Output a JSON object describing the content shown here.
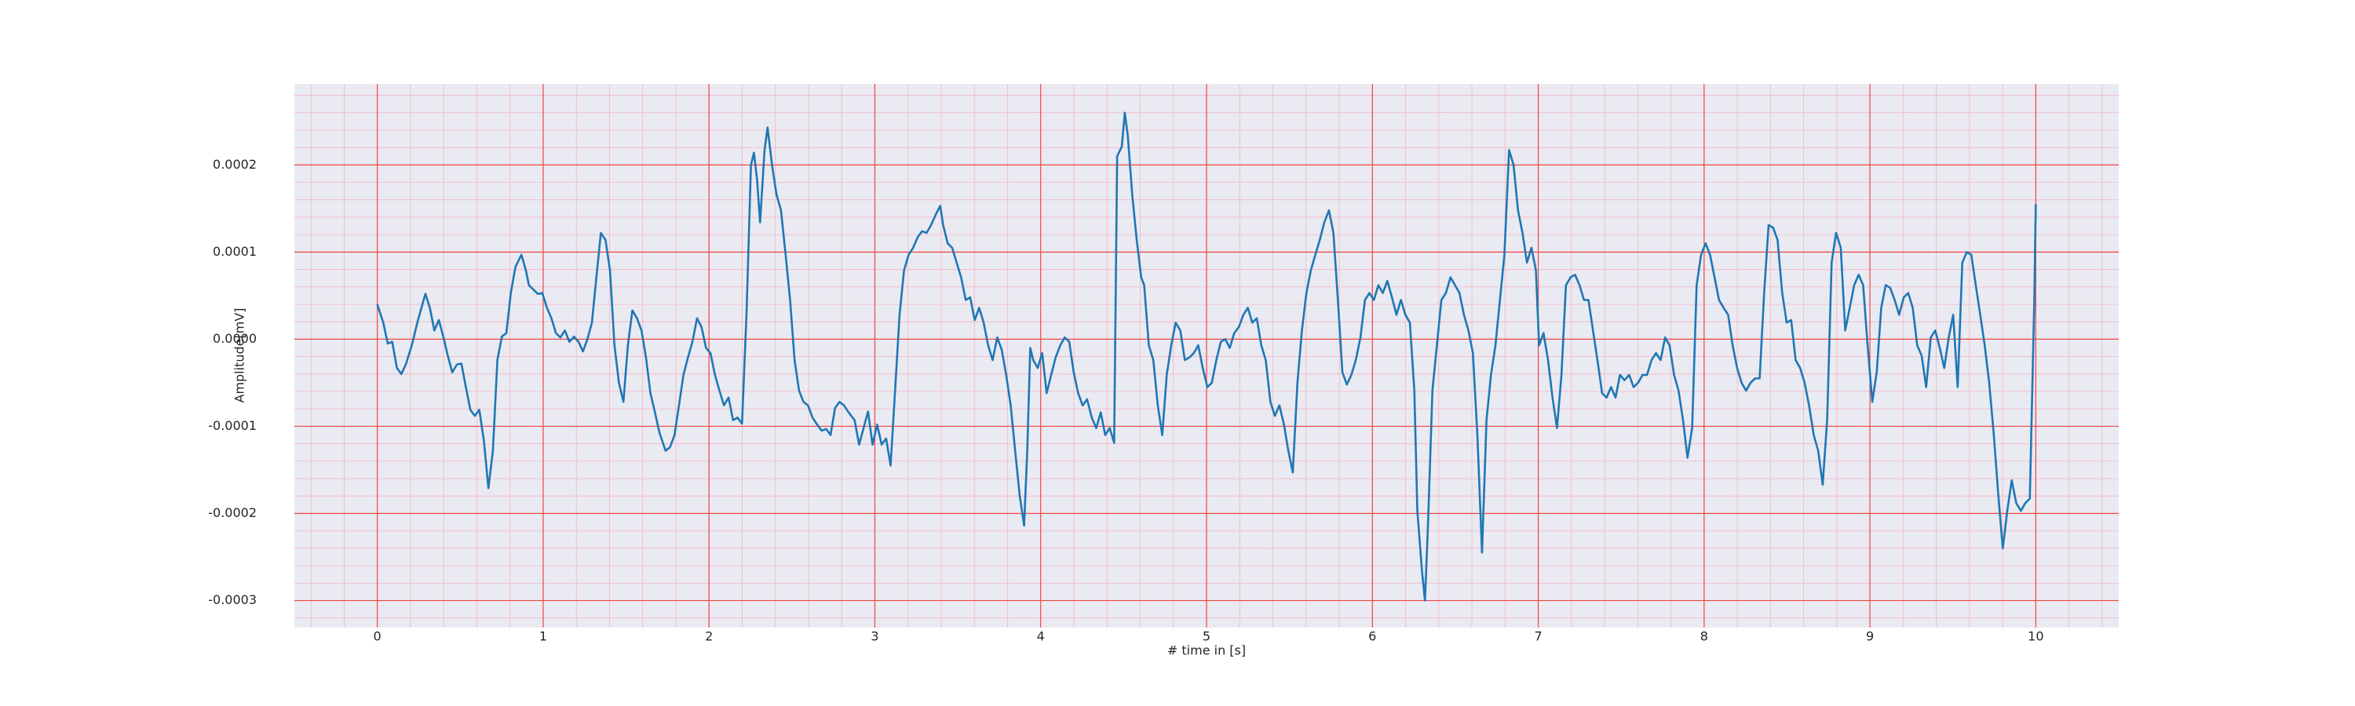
{
  "chart_data": {
    "type": "line",
    "xlabel": "# time in [s]",
    "ylabel": "Amplitude[mV]",
    "color": "#1f77b4",
    "grid": true,
    "minor_grid": true,
    "xlim": [
      -0.5,
      10.5
    ],
    "ylim": [
      -0.000331,
      0.000293
    ],
    "xticks": [
      0,
      1,
      2,
      3,
      4,
      5,
      6,
      7,
      8,
      9,
      10
    ],
    "yticks": [
      -0.0003,
      -0.0002,
      -0.0001,
      {
        "value": 0,
        "label": "0.0000"
      },
      0.0001,
      0.0002
    ],
    "x": [
      0.0,
      0.036,
      0.063,
      0.09,
      0.118,
      0.145,
      0.172,
      0.208,
      0.244,
      0.29,
      0.317,
      0.344,
      0.371,
      0.398,
      0.425,
      0.452,
      0.48,
      0.507,
      0.534,
      0.561,
      0.588,
      0.615,
      0.643,
      0.67,
      0.697,
      0.724,
      0.751,
      0.778,
      0.805,
      0.833,
      0.869,
      0.896,
      0.914,
      0.941,
      0.968,
      0.995,
      1.023,
      1.05,
      1.077,
      1.104,
      1.131,
      1.158,
      1.186,
      1.213,
      1.24,
      1.267,
      1.294,
      1.321,
      1.348,
      1.376,
      1.403,
      1.43,
      1.457,
      1.484,
      1.511,
      1.538,
      1.566,
      1.593,
      1.62,
      1.647,
      1.674,
      1.701,
      1.738,
      1.765,
      1.792,
      1.819,
      1.846,
      1.873,
      1.9,
      1.928,
      1.955,
      1.982,
      2.009,
      2.036,
      2.063,
      2.09,
      2.118,
      2.145,
      2.172,
      2.199,
      2.226,
      2.253,
      2.271,
      2.29,
      2.308,
      2.335,
      2.353,
      2.38,
      2.407,
      2.434,
      2.462,
      2.489,
      2.516,
      2.543,
      2.57,
      2.597,
      2.624,
      2.652,
      2.679,
      2.706,
      2.733,
      2.76,
      2.787,
      2.814,
      2.842,
      2.878,
      2.905,
      2.932,
      2.959,
      2.986,
      3.014,
      3.041,
      3.068,
      3.095,
      3.122,
      3.149,
      3.176,
      3.204,
      3.231,
      3.258,
      3.285,
      3.312,
      3.339,
      3.367,
      3.394,
      3.412,
      3.439,
      3.466,
      3.493,
      3.52,
      3.548,
      3.575,
      3.602,
      3.629,
      3.656,
      3.683,
      3.71,
      3.738,
      3.765,
      3.792,
      3.819,
      3.846,
      3.873,
      3.9,
      3.919,
      3.937,
      3.955,
      3.982,
      4.009,
      4.036,
      4.063,
      4.09,
      4.118,
      4.145,
      4.172,
      4.199,
      4.226,
      4.253,
      4.28,
      4.308,
      4.335,
      4.362,
      4.389,
      4.416,
      4.443,
      4.461,
      4.489,
      4.507,
      4.525,
      4.552,
      4.579,
      4.606,
      4.624,
      4.652,
      4.679,
      4.706,
      4.733,
      4.76,
      4.787,
      4.814,
      4.842,
      4.869,
      4.896,
      4.923,
      4.95,
      4.977,
      5.005,
      5.032,
      5.059,
      5.086,
      5.113,
      5.14,
      5.167,
      5.195,
      5.222,
      5.249,
      5.276,
      5.303,
      5.33,
      5.357,
      5.385,
      5.412,
      5.439,
      5.466,
      5.493,
      5.52,
      5.548,
      5.575,
      5.602,
      5.629,
      5.656,
      5.683,
      5.71,
      5.738,
      5.765,
      5.792,
      5.819,
      5.846,
      5.873,
      5.9,
      5.928,
      5.955,
      5.982,
      6.009,
      6.036,
      6.063,
      6.09,
      6.118,
      6.145,
      6.172,
      6.199,
      6.226,
      6.253,
      6.271,
      6.299,
      6.317,
      6.335,
      6.362,
      6.389,
      6.416,
      6.443,
      6.471,
      6.498,
      6.525,
      6.552,
      6.579,
      6.606,
      6.633,
      6.661,
      6.688,
      6.715,
      6.742,
      6.769,
      6.796,
      6.824,
      6.851,
      6.878,
      6.905,
      6.932,
      6.959,
      6.986,
      7.005,
      7.032,
      7.059,
      7.086,
      7.113,
      7.14,
      7.167,
      7.195,
      7.222,
      7.249,
      7.276,
      7.303,
      7.33,
      7.357,
      7.385,
      7.412,
      7.439,
      7.466,
      7.493,
      7.52,
      7.548,
      7.575,
      7.602,
      7.629,
      7.656,
      7.683,
      7.71,
      7.738,
      7.765,
      7.792,
      7.819,
      7.846,
      7.873,
      7.9,
      7.928,
      7.955,
      7.982,
      8.009,
      8.036,
      8.063,
      8.09,
      8.118,
      8.145,
      8.172,
      8.199,
      8.226,
      8.253,
      8.28,
      8.308,
      8.335,
      8.362,
      8.389,
      8.416,
      8.443,
      8.471,
      8.498,
      8.525,
      8.552,
      8.579,
      8.606,
      8.633,
      8.661,
      8.688,
      8.715,
      8.742,
      8.769,
      8.796,
      8.824,
      8.851,
      8.878,
      8.905,
      8.932,
      8.959,
      8.986,
      9.014,
      9.041,
      9.068,
      9.095,
      9.122,
      9.149,
      9.176,
      9.204,
      9.231,
      9.258,
      9.285,
      9.312,
      9.339,
      9.367,
      9.394,
      9.421,
      9.448,
      9.475,
      9.502,
      9.529,
      9.557,
      9.584,
      9.611,
      9.638,
      9.665,
      9.692,
      9.719,
      9.747,
      9.774,
      9.801,
      9.828,
      9.855,
      9.882,
      9.91,
      9.937,
      9.964,
      9.991,
      10.0
    ],
    "values": [
      4e-05,
      1.9e-05,
      -5e-06,
      -3e-06,
      -3.3e-05,
      -4e-05,
      -2.9e-05,
      -7e-06,
      2.1e-05,
      5.2e-05,
      3.6e-05,
      1e-05,
      2.2e-05,
      3e-06,
      -1.9e-05,
      -3.8e-05,
      -2.9e-05,
      -2.8e-05,
      -5.5e-05,
      -8.1e-05,
      -8.8e-05,
      -8.1e-05,
      -0.000117,
      -0.000171,
      -0.000128,
      -2.4e-05,
      3e-06,
      7e-06,
      5.3e-05,
      8.3e-05,
      9.7e-05,
      7.9e-05,
      6.2e-05,
      5.7e-05,
      5.2e-05,
      5.3e-05,
      3.6e-05,
      2.4e-05,
      7e-06,
      2e-06,
      1e-05,
      -3e-06,
      3e-06,
      -3e-06,
      -1.4e-05,
      0,
      1.9e-05,
      7.1e-05,
      0.000122,
      0.000114,
      7.9e-05,
      -7e-06,
      -5e-05,
      -7.2e-05,
      -7e-06,
      3.3e-05,
      2.4e-05,
      1e-05,
      -2.1e-05,
      -6.2e-05,
      -8.4e-05,
      -0.000107,
      -0.000128,
      -0.000124,
      -0.00011,
      -7.6e-05,
      -4.1e-05,
      -2.1e-05,
      -3e-06,
      2.4e-05,
      1.4e-05,
      -1e-05,
      -1.6e-05,
      -4.1e-05,
      -5.9e-05,
      -7.6e-05,
      -6.7e-05,
      -9.3e-05,
      -9e-05,
      -9.7e-05,
      2.8e-05,
      0.0002,
      0.000214,
      0.000183,
      0.000134,
      0.000217,
      0.000243,
      0.0002,
      0.000166,
      0.000148,
      9.7e-05,
      4.5e-05,
      -2.4e-05,
      -5.9e-05,
      -7.2e-05,
      -7.6e-05,
      -9e-05,
      -9.8e-05,
      -0.000105,
      -0.000103,
      -0.00011,
      -7.9e-05,
      -7.2e-05,
      -7.6e-05,
      -8.4e-05,
      -9.3e-05,
      -0.000121,
      -0.000102,
      -8.3e-05,
      -0.000121,
      -9.8e-05,
      -0.000121,
      -0.000114,
      -0.000145,
      -5.9e-05,
      2.8e-05,
      7.9e-05,
      9.7e-05,
      0.000105,
      0.000117,
      0.000124,
      0.000122,
      0.000131,
      0.000143,
      0.000153,
      0.000131,
      0.00011,
      0.000105,
      8.8e-05,
      7.1e-05,
      4.5e-05,
      4.8e-05,
      2.2e-05,
      3.6e-05,
      1.9e-05,
      -7e-06,
      -2.4e-05,
      2e-06,
      -1.2e-05,
      -4.1e-05,
      -7.6e-05,
      -0.000128,
      -0.000179,
      -0.000214,
      -0.000128,
      -1e-05,
      -2.4e-05,
      -3.3e-05,
      -1.6e-05,
      -6.2e-05,
      -4.1e-05,
      -2.1e-05,
      -7e-06,
      2e-06,
      -3e-06,
      -3.8e-05,
      -6.2e-05,
      -7.6e-05,
      -6.9e-05,
      -9e-05,
      -0.000102,
      -8.4e-05,
      -0.00011,
      -0.000102,
      -0.000119,
      0.00021,
      0.000221,
      0.00026,
      0.000234,
      0.000166,
      0.000114,
      7.1e-05,
      6.2e-05,
      -7e-06,
      -2.4e-05,
      -7.6e-05,
      -0.00011,
      -4.1e-05,
      -7e-06,
      1.9e-05,
      1e-05,
      -2.4e-05,
      -2.1e-05,
      -1.6e-05,
      -7e-06,
      -3.3e-05,
      -5.5e-05,
      -5e-05,
      -2.4e-05,
      -3e-06,
      0,
      -1e-05,
      7e-06,
      1.4e-05,
      2.8e-05,
      3.6e-05,
      1.9e-05,
      2.4e-05,
      -7e-06,
      -2.4e-05,
      -7.2e-05,
      -8.8e-05,
      -7.6e-05,
      -9.7e-05,
      -0.000128,
      -0.000153,
      -5e-05,
      1e-05,
      5.3e-05,
      7.9e-05,
      9.7e-05,
      0.000114,
      0.000134,
      0.000148,
      0.000122,
      4.5e-05,
      -3.8e-05,
      -5.2e-05,
      -4.1e-05,
      -2.4e-05,
      2e-06,
      4.5e-05,
      5.3e-05,
      4.5e-05,
      6.2e-05,
      5.3e-05,
      6.7e-05,
      4.8e-05,
      2.8e-05,
      4.5e-05,
      2.8e-05,
      1.9e-05,
      -5.9e-05,
      -0.000197,
      -0.000266,
      -0.0003,
      -0.000214,
      -5.9e-05,
      -7e-06,
      4.5e-05,
      5.3e-05,
      7.1e-05,
      6.2e-05,
      5.3e-05,
      2.8e-05,
      1e-05,
      -1.6e-05,
      -0.00011,
      -0.000245,
      -9.3e-05,
      -4.1e-05,
      -7e-06,
      4.5e-05,
      9.7e-05,
      0.000217,
      0.0002,
      0.000148,
      0.000122,
      8.8e-05,
      0.000105,
      7.9e-05,
      -7e-06,
      7e-06,
      -2.4e-05,
      -6.7e-05,
      -0.000102,
      -4.1e-05,
      6.2e-05,
      7.1e-05,
      7.4e-05,
      6.2e-05,
      4.5e-05,
      4.5e-05,
      1e-05,
      -2.4e-05,
      -6.2e-05,
      -6.7e-05,
      -5.5e-05,
      -6.7e-05,
      -4.1e-05,
      -4.7e-05,
      -4.1e-05,
      -5.5e-05,
      -5e-05,
      -4.1e-05,
      -4.1e-05,
      -2.4e-05,
      -1.6e-05,
      -2.4e-05,
      2e-06,
      -7e-06,
      -4.1e-05,
      -5.9e-05,
      -9.3e-05,
      -0.000136,
      -0.000102,
      6.2e-05,
      9.7e-05,
      0.00011,
      9.7e-05,
      7.1e-05,
      4.5e-05,
      3.6e-05,
      2.8e-05,
      -7e-06,
      -3.3e-05,
      -5e-05,
      -5.9e-05,
      -5e-05,
      -4.5e-05,
      -4.5e-05,
      5.3e-05,
      0.000131,
      0.000128,
      0.000114,
      5.3e-05,
      1.9e-05,
      2.2e-05,
      -2.4e-05,
      -3.3e-05,
      -5e-05,
      -7.6e-05,
      -0.00011,
      -0.000128,
      -0.000167,
      -9.3e-05,
      8.8e-05,
      0.000122,
      0.000105,
      1e-05,
      3.6e-05,
      6.2e-05,
      7.4e-05,
      6.2e-05,
      -7e-06,
      -7.2e-05,
      -3.8e-05,
      3.6e-05,
      6.2e-05,
      5.9e-05,
      4.5e-05,
      2.8e-05,
      4.8e-05,
      5.3e-05,
      3.6e-05,
      -7e-06,
      -1.9e-05,
      -5.5e-05,
      2e-06,
      1e-05,
      -1e-05,
      -3.3e-05,
      2e-06,
      2.8e-05,
      -5.5e-05,
      8.8e-05,
      0.0001,
      9.7e-05,
      6.2e-05,
      2.8e-05,
      -7e-06,
      -5e-05,
      -0.00011,
      -0.000179,
      -0.00024,
      -0.000197,
      -0.000162,
      -0.000188,
      -0.000197,
      -0.000188,
      -0.000183,
      4.5e-05,
      0.000155
    ]
  }
}
